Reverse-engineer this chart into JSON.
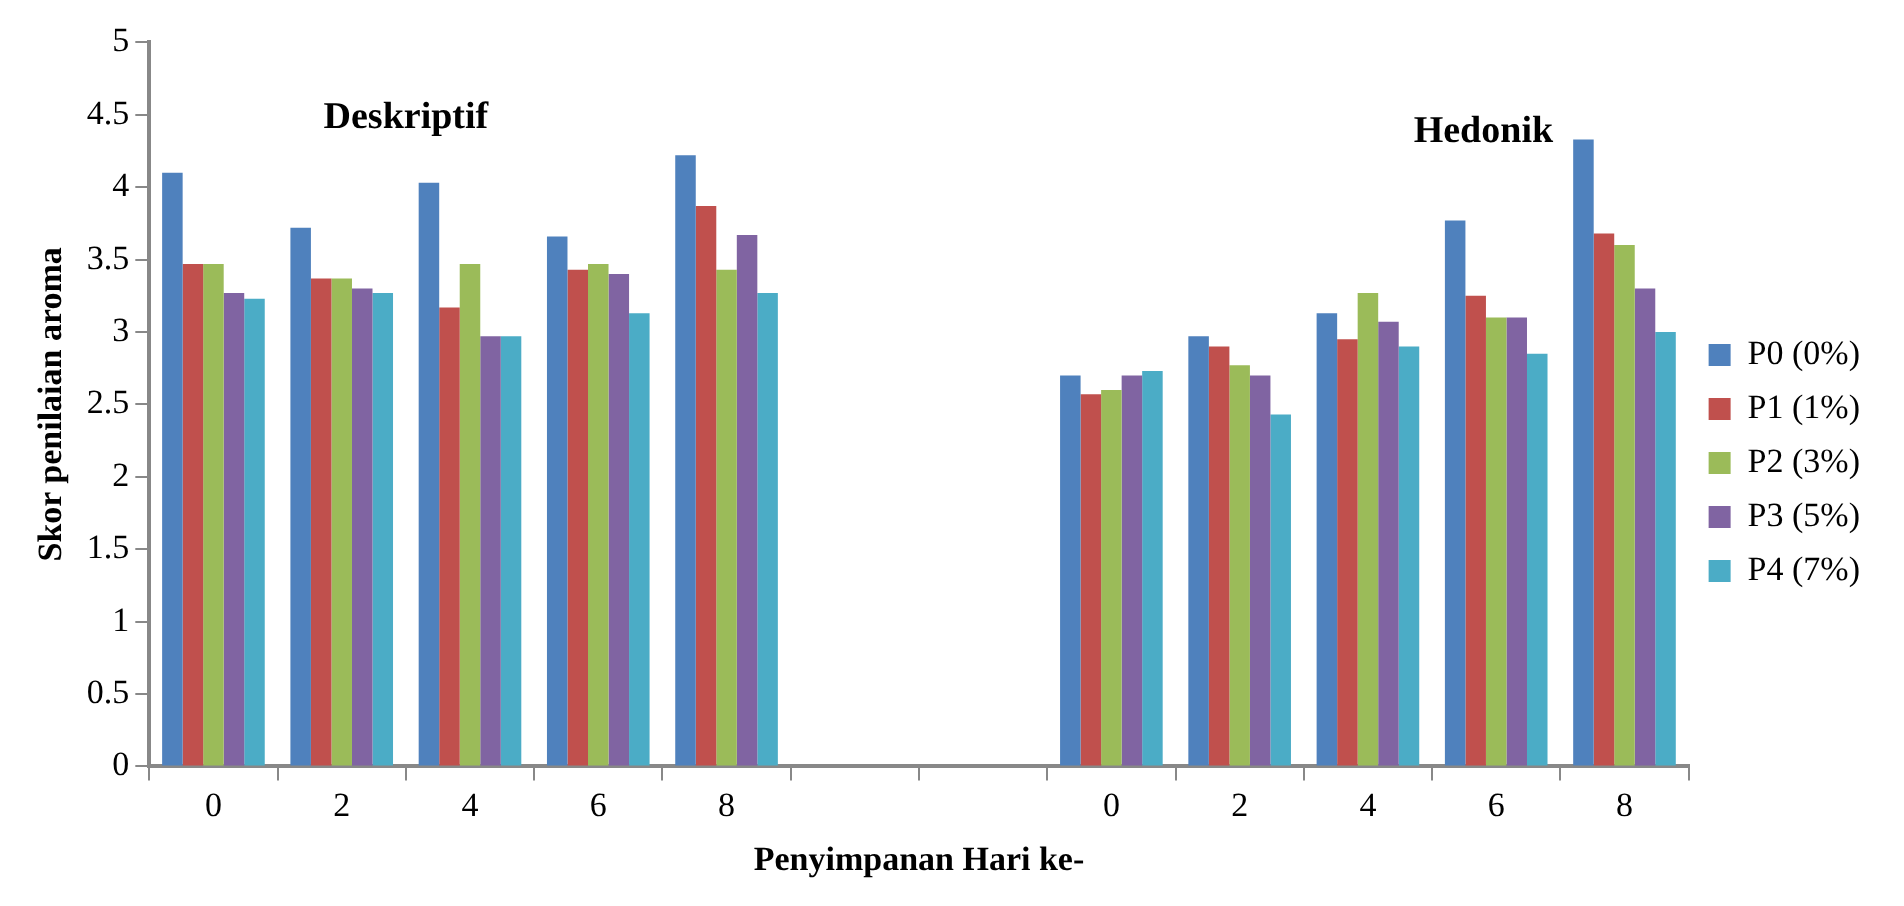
{
  "chart_data": {
    "type": "bar",
    "xlabel": "Penyimpanan Hari ke-",
    "ylabel": "Skor penilaian aroma",
    "annotations": [
      "Deskriptif",
      "Hedonik"
    ],
    "categories": [
      "0",
      "2",
      "4",
      "6",
      "8",
      null,
      null,
      "0",
      "2",
      "4",
      "6",
      "8"
    ],
    "series": [
      {
        "name": "P0 (0%)",
        "color": "#4f81bd",
        "values": [
          4.1,
          3.72,
          4.03,
          3.66,
          4.22,
          null,
          null,
          2.7,
          2.97,
          3.13,
          3.77,
          4.33
        ]
      },
      {
        "name": "P1 (1%)",
        "color": "#c0504d",
        "values": [
          3.47,
          3.37,
          3.17,
          3.43,
          3.87,
          null,
          null,
          2.57,
          2.9,
          2.95,
          3.25,
          3.68
        ]
      },
      {
        "name": "P2 (3%)",
        "color": "#9bbb59",
        "values": [
          3.47,
          3.37,
          3.47,
          3.47,
          3.43,
          null,
          null,
          2.6,
          2.77,
          3.27,
          3.1,
          3.6
        ]
      },
      {
        "name": "P3 (5%)",
        "color": "#8064a2",
        "values": [
          3.27,
          3.3,
          2.97,
          3.4,
          3.67,
          null,
          null,
          2.7,
          2.7,
          3.07,
          3.1,
          3.3
        ]
      },
      {
        "name": "P4 (7%)",
        "color": "#4bacc6",
        "values": [
          3.23,
          3.27,
          2.97,
          3.13,
          3.27,
          null,
          null,
          2.73,
          2.43,
          2.9,
          2.85,
          3.0
        ]
      }
    ],
    "ylim": [
      0,
      5
    ],
    "yticks": [
      0,
      0.5,
      1,
      1.5,
      2,
      2.5,
      3,
      3.5,
      4,
      4.5,
      5
    ],
    "grid": false,
    "legend": "right"
  }
}
